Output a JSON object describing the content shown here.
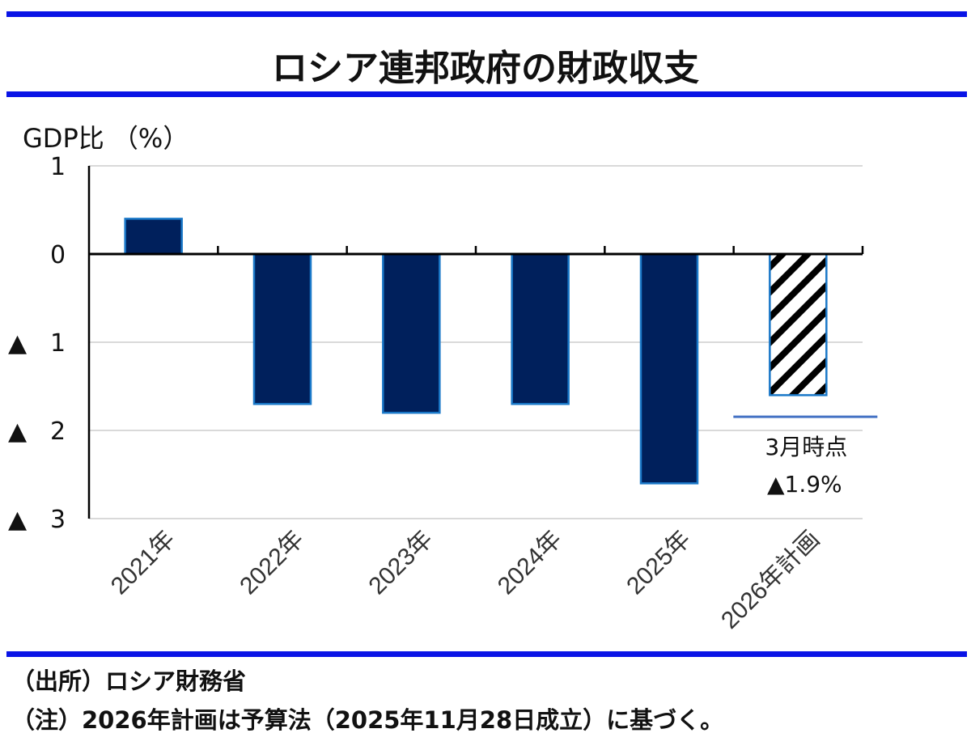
{
  "chart_data": {
    "type": "bar",
    "title": "ロシア連邦政府の財政収支",
    "ylabel": "GDP比 （%）",
    "categories": [
      "2021年",
      "2022年",
      "2023年",
      "2024年",
      "2025年",
      "2026年計画"
    ],
    "values": [
      0.4,
      -1.7,
      -1.8,
      -1.7,
      -2.6,
      -1.6
    ],
    "bar_styles": [
      "solid",
      "solid",
      "solid",
      "solid",
      "solid",
      "hatched"
    ],
    "ylim": [
      -3,
      1
    ],
    "yticks": [
      1,
      0,
      -1,
      -2,
      -3
    ],
    "ytick_labels": [
      "1",
      "0",
      "▲ 1",
      "▲ 2",
      "▲ 3"
    ],
    "grid": true,
    "reference_line": {
      "category": "2026年計画",
      "value": -1.9,
      "label_line1": "3月時点",
      "label_line2": "▲1.9%"
    },
    "colors": {
      "bar": "#00205c",
      "bar_edge": "#1a78c8",
      "reference": "#4472c4",
      "grid": "#d9d9d9",
      "rule": "#0a14e6"
    }
  },
  "notes": {
    "source": "（出所）ロシア財務省",
    "note": "（注）2026年計画は予算法（2025年11月28日成立）に基づく。"
  }
}
